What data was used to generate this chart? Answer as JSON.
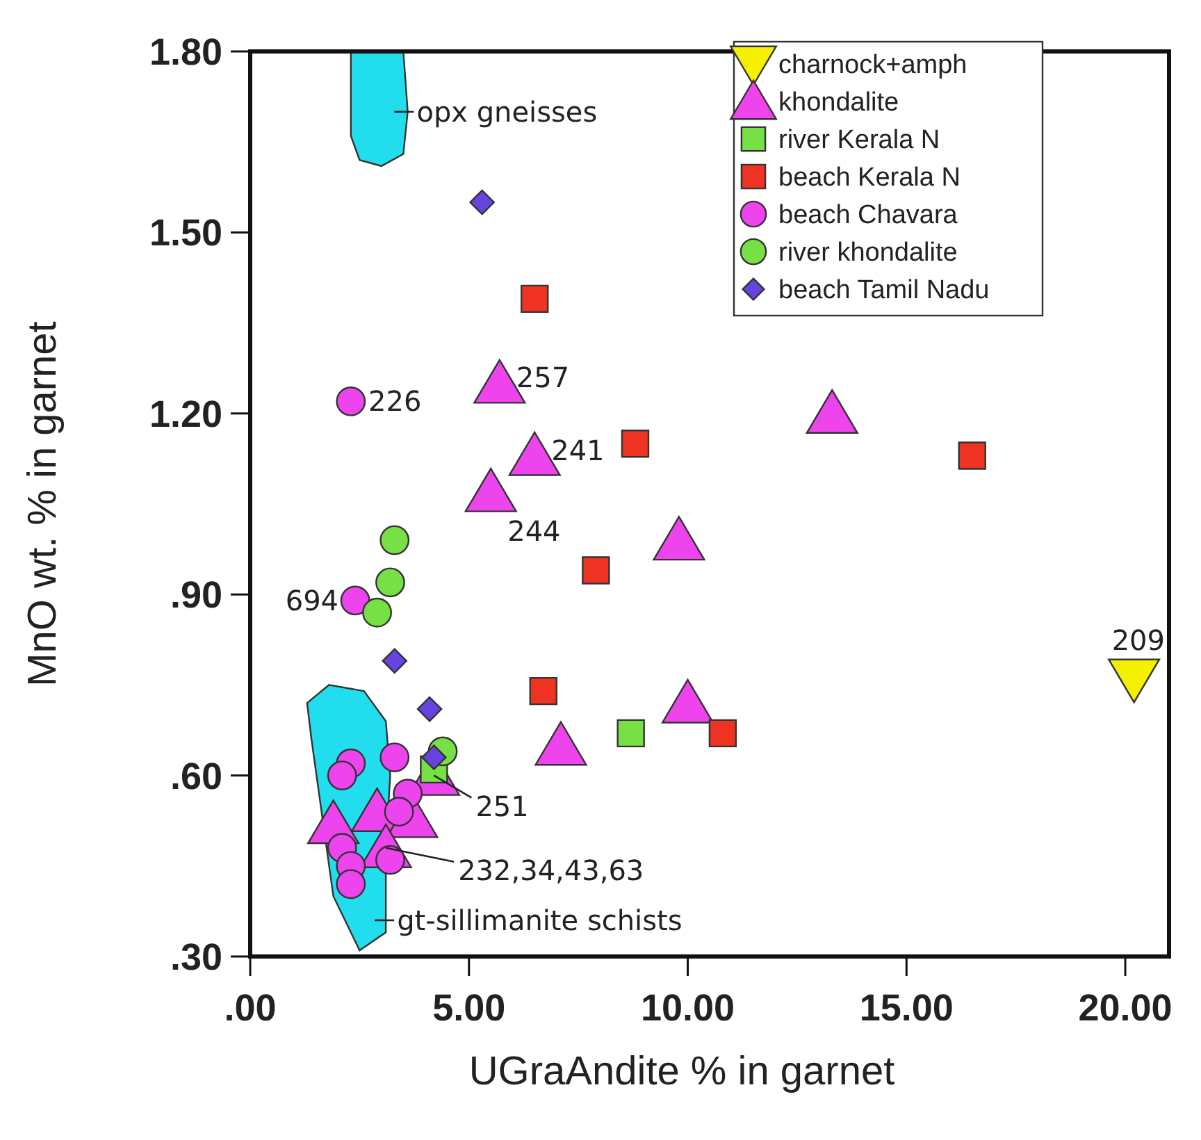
{
  "chart_data": {
    "type": "scatter",
    "xlabel": "UGraAndite % in garnet",
    "ylabel": "MnO wt. % in garnet",
    "xlim": [
      0,
      21
    ],
    "ylim": [
      0.3,
      1.8
    ],
    "xticks": [
      {
        "value": 0,
        "label": ".00"
      },
      {
        "value": 5,
        "label": "5.00"
      },
      {
        "value": 10,
        "label": "10.00"
      },
      {
        "value": 15,
        "label": "15.00"
      },
      {
        "value": 20,
        "label": "20.00"
      }
    ],
    "yticks": [
      {
        "value": 0.3,
        "label": ".30"
      },
      {
        "value": 0.6,
        "label": ".60"
      },
      {
        "value": 0.9,
        "label": ".90"
      },
      {
        "value": 1.2,
        "label": "1.20"
      },
      {
        "value": 1.5,
        "label": "1.50"
      },
      {
        "value": 1.8,
        "label": "1.80"
      }
    ],
    "grid": false,
    "legend": "top right",
    "series": [
      {
        "name": "charnock+amph",
        "color": "#f4f000",
        "marker": "triangle-down",
        "x": [
          20.2
        ],
        "values": [
          0.76
        ]
      },
      {
        "name": "khondalite",
        "color": "#ee44ee",
        "marker": "triangle",
        "x": [
          5.7,
          6.5,
          5.5,
          9.8,
          13.3,
          10,
          7.1,
          1.9,
          2.9,
          3.7,
          3.1,
          4.2
        ],
        "values": [
          1.25,
          1.13,
          1.07,
          0.99,
          1.2,
          0.72,
          0.65,
          0.52,
          0.54,
          0.53,
          0.48,
          0.6
        ]
      },
      {
        "name": "river Kerala N",
        "color": "#77e044",
        "marker": "square",
        "x": [
          8.7,
          4.2
        ],
        "values": [
          0.67,
          0.61
        ]
      },
      {
        "name": "beach Kerala N",
        "color": "#ee3322",
        "marker": "square",
        "x": [
          6.5,
          8.8,
          7.9,
          6.7,
          10.8,
          16.5
        ],
        "values": [
          1.39,
          1.15,
          0.94,
          0.74,
          0.67,
          1.13
        ]
      },
      {
        "name": "beach Chavara",
        "color": "#ee44ee",
        "marker": "circle",
        "x": [
          2.3,
          2.4,
          2.3,
          2.1,
          3.3,
          3.6,
          3.4,
          2.1,
          2.3,
          2.3,
          3.2
        ],
        "values": [
          1.22,
          0.89,
          0.62,
          0.6,
          0.63,
          0.57,
          0.54,
          0.48,
          0.45,
          0.42,
          0.46
        ]
      },
      {
        "name": "river khondalite",
        "color": "#77e044",
        "marker": "circle",
        "x": [
          3.3,
          3.2,
          2.9,
          4.4
        ],
        "values": [
          0.99,
          0.92,
          0.87,
          0.64
        ]
      },
      {
        "name": "beach Tamil Nadu",
        "color": "#6644dd",
        "marker": "diamond",
        "x": [
          5.3,
          3.3,
          4.1,
          4.2
        ],
        "values": [
          1.55,
          0.79,
          0.71,
          0.63
        ]
      }
    ],
    "annotations": [
      {
        "text": "226",
        "x": 2.32,
        "y": 1.22
      },
      {
        "text": "257",
        "x": 5.7,
        "y": 1.25
      },
      {
        "text": "241",
        "x": 6.5,
        "y": 1.13
      },
      {
        "text": "244",
        "x": 5.5,
        "y": 1.07
      },
      {
        "text": "694",
        "x": 2.4,
        "y": 0.89
      },
      {
        "text": "209",
        "x": 20.2,
        "y": 0.76
      },
      {
        "text": "251",
        "x": 4.2,
        "y": 0.6
      },
      {
        "text": "232,34,43,63",
        "x": 3.1,
        "y": 0.48
      },
      "opx gneisses",
      "gt-sillimanite schists"
    ]
  }
}
